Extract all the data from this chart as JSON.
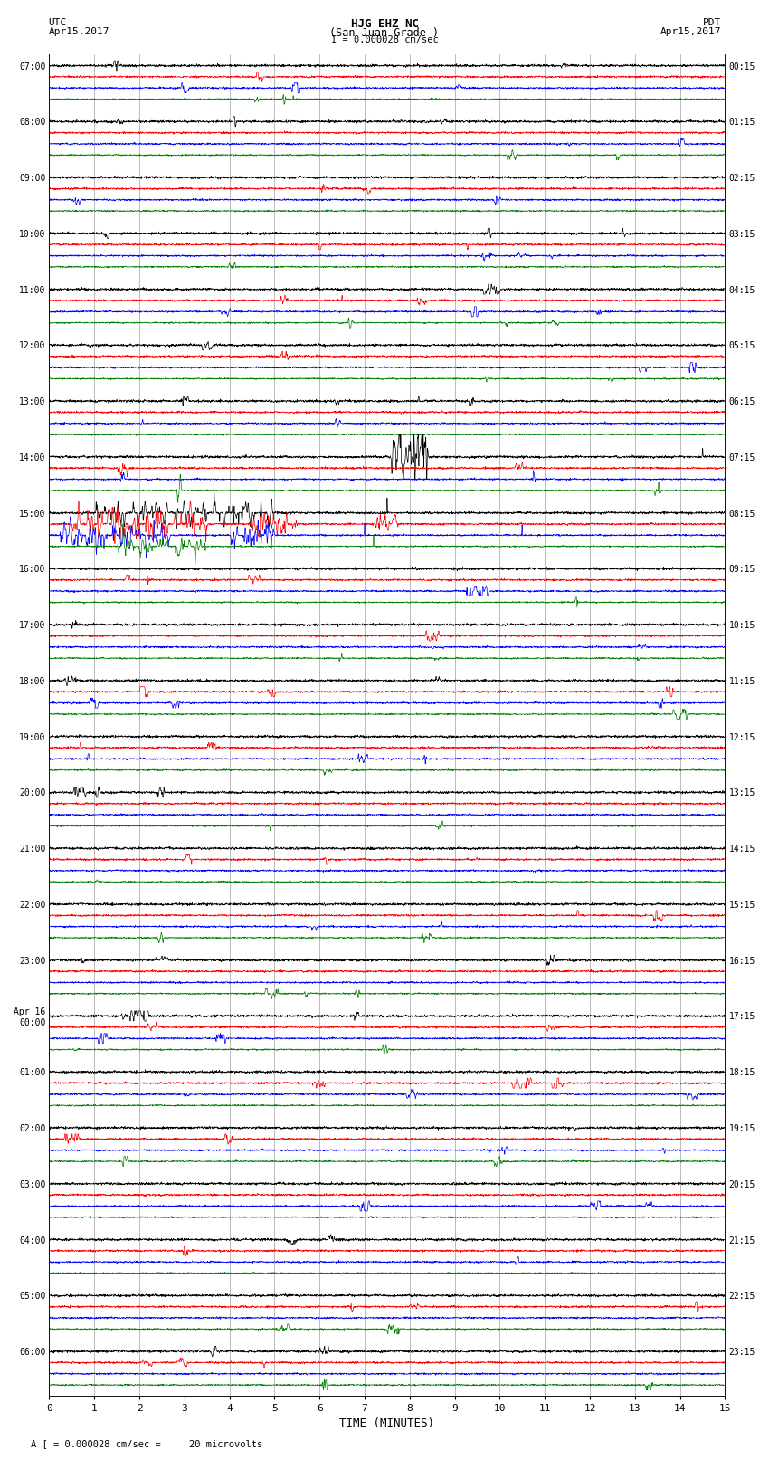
{
  "title_line1": "HJG EHZ NC",
  "title_line2": "(San Juan Grade )",
  "title_line3": "I = 0.000028 cm/sec",
  "left_header_line1": "UTC",
  "left_header_line2": "Apr15,2017",
  "right_header_line1": "PDT",
  "right_header_line2": "Apr15,2017",
  "xlabel": "TIME (MINUTES)",
  "footer": "A [ = 0.000028 cm/sec =     20 microvolts",
  "utc_times": [
    "07:00",
    "08:00",
    "09:00",
    "10:00",
    "11:00",
    "12:00",
    "13:00",
    "14:00",
    "15:00",
    "16:00",
    "17:00",
    "18:00",
    "19:00",
    "20:00",
    "21:00",
    "22:00",
    "23:00",
    "Apr 16\n00:00",
    "01:00",
    "02:00",
    "03:00",
    "04:00",
    "05:00",
    "06:00"
  ],
  "pdt_times": [
    "00:15",
    "01:15",
    "02:15",
    "03:15",
    "04:15",
    "05:15",
    "06:15",
    "07:15",
    "08:15",
    "09:15",
    "10:15",
    "11:15",
    "12:15",
    "13:15",
    "14:15",
    "15:15",
    "16:15",
    "17:15",
    "18:15",
    "19:15",
    "20:15",
    "21:15",
    "22:15",
    "23:15"
  ],
  "n_rows": 24,
  "n_traces": 4,
  "x_min": 0,
  "x_max": 15,
  "trace_colors": [
    "black",
    "red",
    "blue",
    "green"
  ],
  "bg_color": "white",
  "grid_color": "#888888",
  "grid_linewidth": 0.4
}
